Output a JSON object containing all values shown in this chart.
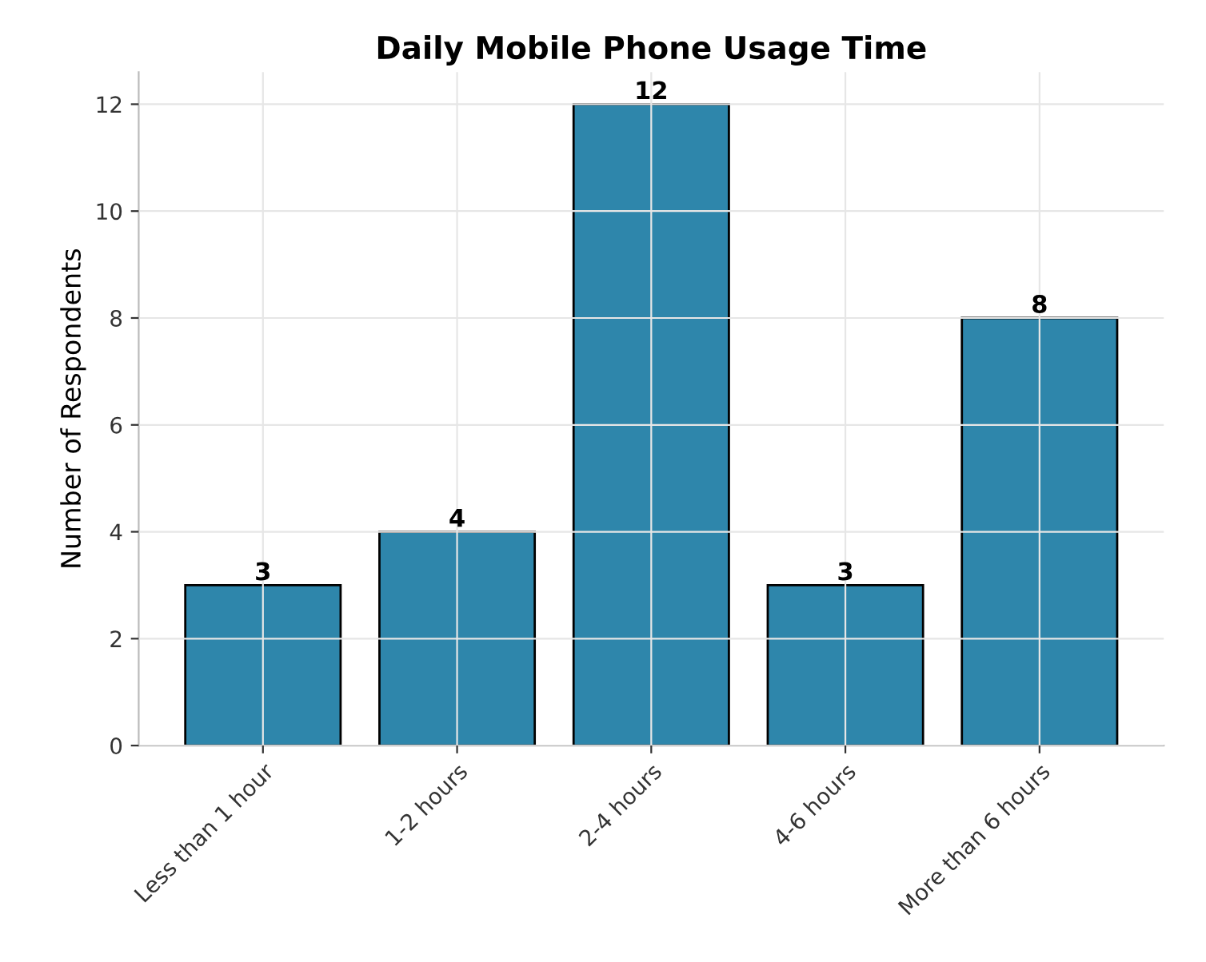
{
  "chart_data": {
    "type": "bar",
    "title": "Daily Mobile Phone Usage Time",
    "ylabel": "Number of Respondents",
    "categories": [
      "Less than 1 hour",
      "1-2 hours",
      "2-4 hours",
      "4-6 hours",
      "More than 6 hours"
    ],
    "values": [
      3,
      4,
      12,
      3,
      8
    ],
    "color": "#2e86ab",
    "ylim": [
      0,
      12.6
    ],
    "yticks": [
      0,
      2,
      4,
      6,
      8,
      10,
      12
    ],
    "grid": true,
    "data_labels": true
  }
}
